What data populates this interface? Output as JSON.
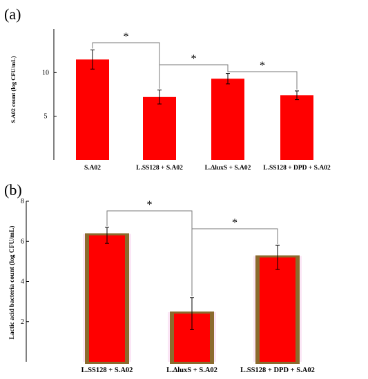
{
  "chart_data": [
    {
      "panel": "(a)",
      "type": "bar",
      "ylabel": "S.A02 count (log CFU/mL)",
      "ylim": [
        0,
        15
      ],
      "yticks": [
        "5",
        "10"
      ],
      "categories": [
        "S.A02",
        "L.SS128 + S.A02",
        "L.ΔluxS + S.A02",
        "L.SS128 + DPD + S.A02"
      ],
      "values": [
        11.5,
        7.2,
        9.3,
        7.4
      ],
      "errors": [
        1.1,
        0.8,
        0.6,
        0.5
      ],
      "bar_color": "#ff0000",
      "significance": [
        {
          "from": 0,
          "to": 1,
          "label": "*"
        },
        {
          "from": 1,
          "to": 2,
          "label": "*"
        },
        {
          "from": 2,
          "to": 3,
          "label": "*"
        }
      ]
    },
    {
      "panel": "(b)",
      "type": "bar",
      "ylabel": "Lactic acid bacteria count (log CFU/mL)",
      "ylim": [
        0,
        8
      ],
      "yticks": [
        "2",
        "4",
        "6",
        "8"
      ],
      "categories": [
        "L.SS128 + S.A02",
        "L.ΔluxS + S.A02",
        "L.SS128 + DPD + S.A02"
      ],
      "values": [
        6.3,
        2.4,
        5.2
      ],
      "errors": [
        0.4,
        0.8,
        0.6
      ],
      "bar_color": "#ff0000",
      "bar_edge_color": "#8b6b2e",
      "significance": [
        {
          "from": 0,
          "to": 1,
          "label": "*"
        },
        {
          "from": 1,
          "to": 2,
          "label": "*"
        }
      ]
    }
  ]
}
